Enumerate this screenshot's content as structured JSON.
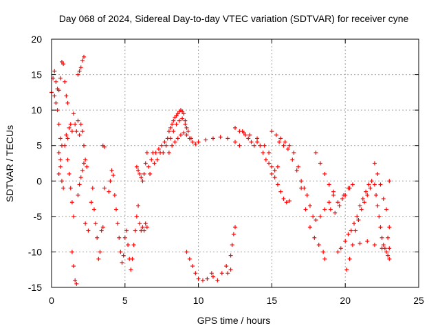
{
  "chart_data": {
    "type": "scatter",
    "title": "Day 068 of 2024, Sidereal Day-to-day VTEC variation (SDTVAR) for receiver cyne",
    "xlabel": "GPS time / hours",
    "ylabel": "SDTVAR / TECUs",
    "xlim": [
      0,
      25
    ],
    "ylim": [
      -15,
      20
    ],
    "xticks": [
      0,
      5,
      10,
      15,
      20,
      25
    ],
    "yticks": [
      -15,
      -10,
      -5,
      0,
      5,
      10,
      15,
      20
    ],
    "grid": true,
    "marker": "plus",
    "color": "#ff0000",
    "series": [
      {
        "name": "SDTVAR",
        "points": [
          [
            0.0,
            12.5
          ],
          [
            0.1,
            14.5
          ],
          [
            0.2,
            15.5
          ],
          [
            0.3,
            14.0
          ],
          [
            0.4,
            13.0
          ],
          [
            0.5,
            12.8
          ],
          [
            0.6,
            14.5
          ],
          [
            0.7,
            16.8
          ],
          [
            0.8,
            16.5
          ],
          [
            0.9,
            14.0
          ],
          [
            1.0,
            12.0
          ],
          [
            1.1,
            11.0
          ],
          [
            0.2,
            12.0
          ],
          [
            0.3,
            11.0
          ],
          [
            0.4,
            10.0
          ],
          [
            0.5,
            8.0
          ],
          [
            0.6,
            6.0
          ],
          [
            0.7,
            5.0
          ],
          [
            0.5,
            4.0
          ],
          [
            0.6,
            2.0
          ],
          [
            0.7,
            0.0
          ],
          [
            0.8,
            -1.0
          ],
          [
            0.5,
            1.0
          ],
          [
            0.6,
            3.0
          ],
          [
            0.9,
            5.0
          ],
          [
            1.0,
            6.5
          ],
          [
            1.1,
            6.0
          ],
          [
            1.2,
            7.5
          ],
          [
            1.3,
            8.0
          ],
          [
            1.4,
            7.0
          ],
          [
            1.5,
            9.5
          ],
          [
            1.6,
            8.0
          ],
          [
            1.7,
            7.0
          ],
          [
            1.8,
            8.5
          ],
          [
            1.9,
            6.5
          ],
          [
            2.0,
            8.0
          ],
          [
            2.1,
            7.0
          ],
          [
            2.2,
            5.0
          ],
          [
            2.3,
            3.0
          ],
          [
            2.4,
            2.0
          ],
          [
            1.8,
            15.0
          ],
          [
            1.9,
            15.5
          ],
          [
            2.0,
            16.0
          ],
          [
            2.1,
            17.0
          ],
          [
            2.2,
            17.5
          ],
          [
            1.1,
            3.0
          ],
          [
            1.2,
            1.0
          ],
          [
            1.3,
            -1.0
          ],
          [
            1.4,
            -3.0
          ],
          [
            1.5,
            -5.0
          ],
          [
            1.4,
            -10.0
          ],
          [
            1.5,
            -12.0
          ],
          [
            1.6,
            -14.0
          ],
          [
            1.7,
            -14.5
          ],
          [
            1.8,
            -2.0
          ],
          [
            1.9,
            -0.5
          ],
          [
            2.0,
            0.5
          ],
          [
            2.1,
            1.5
          ],
          [
            2.2,
            2.5
          ],
          [
            2.3,
            -6.0
          ],
          [
            2.5,
            -7.0
          ],
          [
            2.7,
            -3.0
          ],
          [
            2.8,
            -1.0
          ],
          [
            2.9,
            -4.0
          ],
          [
            3.0,
            -6.0
          ],
          [
            3.1,
            -8.0
          ],
          [
            3.2,
            -11.0
          ],
          [
            3.3,
            -10.0
          ],
          [
            3.4,
            -7.0
          ],
          [
            3.5,
            -6.5
          ],
          [
            3.6,
            -1.0
          ],
          [
            3.5,
            5.0
          ],
          [
            3.6,
            4.8
          ],
          [
            3.9,
            -1.5
          ],
          [
            4.0,
            0.0
          ],
          [
            4.1,
            1.5
          ],
          [
            4.2,
            0.8
          ],
          [
            4.3,
            -2.0
          ],
          [
            4.4,
            -4.0
          ],
          [
            4.5,
            -6.0
          ],
          [
            4.6,
            -8.0
          ],
          [
            4.7,
            -10.0
          ],
          [
            4.8,
            -11.5
          ],
          [
            4.9,
            -10.5
          ],
          [
            5.0,
            -8.0
          ],
          [
            5.1,
            -7.0
          ],
          [
            5.2,
            -9.0
          ],
          [
            5.3,
            -11.0
          ],
          [
            5.4,
            -12.5
          ],
          [
            5.5,
            -11.0
          ],
          [
            5.6,
            -9.0
          ],
          [
            5.7,
            -7.0
          ],
          [
            5.8,
            -5.0
          ],
          [
            5.9,
            -3.5
          ],
          [
            6.0,
            -6.0
          ],
          [
            6.1,
            -7.0
          ],
          [
            6.2,
            -6.5
          ],
          [
            6.3,
            -7.0
          ],
          [
            6.4,
            -6.0
          ],
          [
            6.5,
            -6.5
          ],
          [
            5.8,
            2.0
          ],
          [
            5.9,
            1.5
          ],
          [
            6.0,
            1.0
          ],
          [
            6.1,
            0.5
          ],
          [
            6.2,
            0.0
          ],
          [
            6.3,
            1.0
          ],
          [
            6.4,
            2.5
          ],
          [
            6.5,
            4.0
          ],
          [
            6.6,
            2.0
          ],
          [
            6.7,
            1.0
          ],
          [
            6.8,
            3.0
          ],
          [
            6.9,
            4.0
          ],
          [
            7.0,
            2.5
          ],
          [
            7.1,
            4.0
          ],
          [
            7.2,
            3.0
          ],
          [
            7.3,
            4.5
          ],
          [
            7.4,
            4.0
          ],
          [
            7.5,
            5.0
          ],
          [
            7.6,
            4.0
          ],
          [
            7.7,
            5.5
          ],
          [
            7.8,
            5.0
          ],
          [
            7.9,
            6.0
          ],
          [
            8.0,
            7.0
          ],
          [
            8.1,
            7.5
          ],
          [
            8.2,
            8.0
          ],
          [
            8.3,
            8.5
          ],
          [
            8.4,
            9.0
          ],
          [
            8.5,
            9.2
          ],
          [
            8.6,
            9.5
          ],
          [
            8.7,
            9.8
          ],
          [
            8.8,
            10.0
          ],
          [
            8.9,
            9.8
          ],
          [
            9.0,
            9.5
          ],
          [
            9.1,
            8.5
          ],
          [
            9.2,
            7.5
          ],
          [
            8.0,
            4.0
          ],
          [
            8.2,
            5.0
          ],
          [
            8.4,
            5.5
          ],
          [
            8.6,
            6.0
          ],
          [
            8.8,
            6.5
          ],
          [
            9.0,
            6.8
          ],
          [
            9.2,
            6.5
          ],
          [
            9.4,
            6.0
          ],
          [
            9.6,
            5.5
          ],
          [
            9.8,
            5.2
          ],
          [
            8.1,
            6.0
          ],
          [
            8.3,
            7.0
          ],
          [
            8.5,
            8.0
          ],
          [
            8.7,
            8.5
          ],
          [
            8.9,
            8.8
          ],
          [
            9.1,
            8.0
          ],
          [
            9.3,
            7.0
          ],
          [
            9.5,
            6.0
          ],
          [
            10.0,
            5.5
          ],
          [
            10.5,
            5.8
          ],
          [
            11.0,
            6.0
          ],
          [
            11.5,
            6.2
          ],
          [
            12.0,
            6.0
          ],
          [
            12.5,
            5.5
          ],
          [
            12.8,
            5.0
          ],
          [
            13.0,
            7.0
          ],
          [
            13.2,
            6.5
          ],
          [
            13.4,
            6.0
          ],
          [
            13.6,
            5.5
          ],
          [
            13.8,
            5.0
          ],
          [
            14.0,
            5.5
          ],
          [
            14.2,
            5.0
          ],
          [
            14.4,
            4.0
          ],
          [
            14.6,
            3.0
          ],
          [
            14.8,
            2.5
          ],
          [
            15.0,
            2.0
          ],
          [
            15.2,
            1.5
          ],
          [
            15.4,
            2.0
          ],
          [
            12.5,
            7.5
          ],
          [
            12.8,
            7.0
          ],
          [
            13.1,
            6.8
          ],
          [
            13.5,
            6.5
          ],
          [
            14.0,
            6.0
          ],
          [
            14.5,
            5.0
          ],
          [
            14.8,
            4.0
          ],
          [
            15.0,
            1.0
          ],
          [
            15.2,
            0.5
          ],
          [
            15.4,
            -0.5
          ],
          [
            15.6,
            -1.5
          ],
          [
            15.8,
            -2.5
          ],
          [
            16.0,
            -3.0
          ],
          [
            16.2,
            -2.8
          ],
          [
            15.0,
            7.0
          ],
          [
            15.3,
            6.5
          ],
          [
            15.6,
            6.0
          ],
          [
            15.9,
            5.5
          ],
          [
            16.2,
            5.0
          ],
          [
            16.5,
            4.0
          ],
          [
            16.8,
            2.0
          ],
          [
            17.0,
            0.0
          ],
          [
            17.2,
            -1.0
          ],
          [
            17.4,
            -2.0
          ],
          [
            17.6,
            -3.5
          ],
          [
            17.8,
            -5.0
          ],
          [
            18.0,
            -5.5
          ],
          [
            18.3,
            -5.0
          ],
          [
            18.6,
            -4.0
          ],
          [
            18.9,
            -3.0
          ],
          [
            19.2,
            -2.0
          ],
          [
            15.5,
            5.5
          ],
          [
            15.8,
            5.0
          ],
          [
            16.1,
            4.5
          ],
          [
            16.4,
            3.0
          ],
          [
            16.7,
            1.5
          ],
          [
            17.0,
            -1.0
          ],
          [
            17.3,
            -4.0
          ],
          [
            17.6,
            -6.5
          ],
          [
            17.9,
            -8.0
          ],
          [
            18.2,
            -9.0
          ],
          [
            18.5,
            -10.0
          ],
          [
            18.6,
            -11.0
          ],
          [
            18.0,
            4.0
          ],
          [
            18.3,
            2.5
          ],
          [
            18.6,
            1.0
          ],
          [
            18.9,
            -0.5
          ],
          [
            19.2,
            -1.5
          ],
          [
            19.5,
            -3.0
          ],
          [
            19.8,
            -2.5
          ],
          [
            20.0,
            -2.0
          ],
          [
            20.3,
            -1.0
          ],
          [
            19.0,
            -4.0
          ],
          [
            19.3,
            -4.5
          ],
          [
            19.6,
            -3.5
          ],
          [
            19.9,
            -2.0
          ],
          [
            20.2,
            -1.0
          ],
          [
            20.5,
            -0.5
          ],
          [
            19.5,
            -10.0
          ],
          [
            19.7,
            -9.5
          ],
          [
            20.0,
            -8.5
          ],
          [
            20.2,
            -7.5
          ],
          [
            20.4,
            -7.0
          ],
          [
            20.6,
            -6.0
          ],
          [
            20.8,
            -5.0
          ],
          [
            21.0,
            -3.5
          ],
          [
            21.2,
            -2.5
          ],
          [
            21.4,
            -1.5
          ],
          [
            21.6,
            -0.5
          ],
          [
            21.8,
            0.0
          ],
          [
            22.0,
            -0.5
          ],
          [
            22.1,
            -2.0
          ],
          [
            22.2,
            -3.5
          ],
          [
            22.3,
            -5.0
          ],
          [
            22.4,
            -6.5
          ],
          [
            22.5,
            -8.0
          ],
          [
            22.6,
            -9.0
          ],
          [
            22.7,
            -9.5
          ],
          [
            22.8,
            -10.0
          ],
          [
            20.1,
            -12.5
          ],
          [
            20.3,
            -11.0
          ],
          [
            20.5,
            -9.0
          ],
          [
            20.7,
            -7.0
          ],
          [
            20.9,
            -5.5
          ],
          [
            21.1,
            -4.0
          ],
          [
            21.3,
            -3.0
          ],
          [
            21.5,
            -2.0
          ],
          [
            21.7,
            -1.0
          ],
          [
            22.0,
            2.5
          ],
          [
            22.2,
            1.0
          ],
          [
            22.4,
            -0.5
          ],
          [
            22.6,
            -2.5
          ],
          [
            22.8,
            -4.0
          ],
          [
            23.0,
            -6.5
          ],
          [
            22.9,
            -8.0
          ],
          [
            23.0,
            0.0
          ],
          [
            22.9,
            -10.5
          ],
          [
            23.0,
            -11.0
          ],
          [
            21.0,
            -8.8
          ],
          [
            21.5,
            -8.5
          ],
          [
            22.0,
            -9.0
          ],
          [
            22.5,
            -9.5
          ],
          [
            23.0,
            -9.5
          ],
          [
            9.2,
            -10.0
          ],
          [
            9.4,
            -11.0
          ],
          [
            9.6,
            -12.0
          ],
          [
            9.8,
            -13.0
          ],
          [
            10.0,
            -13.8
          ],
          [
            10.3,
            -14.0
          ],
          [
            10.6,
            -13.8
          ],
          [
            10.9,
            -13.0
          ],
          [
            11.0,
            -13.5
          ],
          [
            11.3,
            -14.0
          ],
          [
            11.6,
            -13.0
          ],
          [
            11.9,
            -12.0
          ],
          [
            12.2,
            -10.5
          ],
          [
            12.3,
            -9.0
          ],
          [
            12.4,
            -7.5
          ],
          [
            12.5,
            -6.5
          ],
          [
            12.0,
            -13.0
          ],
          [
            12.2,
            -12.5
          ]
        ]
      }
    ]
  }
}
